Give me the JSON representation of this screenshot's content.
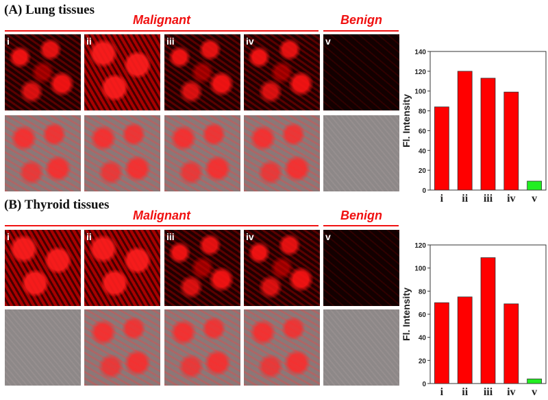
{
  "panels": [
    {
      "title": "(A) Lung tissues",
      "group_malignant": "Malignant",
      "group_benign": "Benign",
      "image_labels": [
        "i",
        "ii",
        "iii",
        "iv",
        "v"
      ]
    },
    {
      "title": "(B) Thyroid tissues",
      "group_malignant": "Malignant",
      "group_benign": "Benign",
      "image_labels": [
        "i",
        "ii",
        "iii",
        "iv",
        "v"
      ]
    }
  ],
  "colors": {
    "malignant_bar": "#ff0000",
    "benign_bar": "#22ee22",
    "group_label": "#f01010"
  },
  "chart_data": [
    {
      "type": "bar",
      "categories": [
        "i",
        "ii",
        "iii",
        "iv",
        "v"
      ],
      "values": [
        84,
        120,
        113,
        99,
        9
      ],
      "ylabel": "Fl. Intensity",
      "ylim": [
        0,
        140
      ],
      "yticks": [
        0,
        20,
        40,
        60,
        80,
        100,
        120,
        140
      ],
      "bar_colors": [
        "#ff0000",
        "#ff0000",
        "#ff0000",
        "#ff0000",
        "#22ee22"
      ],
      "grid": false
    },
    {
      "type": "bar",
      "categories": [
        "i",
        "ii",
        "iii",
        "iv",
        "v"
      ],
      "values": [
        70,
        75,
        109,
        69,
        4
      ],
      "ylabel": "Fl. Intensity",
      "ylim": [
        0,
        120
      ],
      "yticks": [
        0,
        20,
        40,
        60,
        80,
        100,
        120
      ],
      "bar_colors": [
        "#ff0000",
        "#ff0000",
        "#ff0000",
        "#ff0000",
        "#22ee22"
      ],
      "grid": false
    }
  ]
}
